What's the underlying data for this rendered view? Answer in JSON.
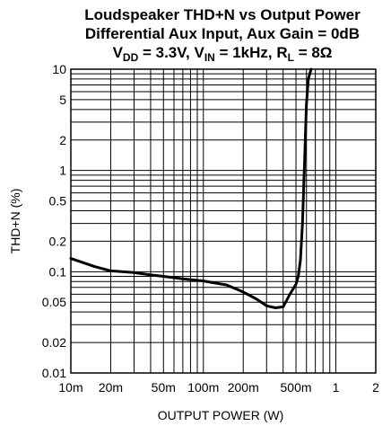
{
  "chart_data": {
    "type": "line",
    "title_lines": [
      "Loudspeaker THD+N vs Output Power",
      "Differential Aux Input, Aux Gain = 0dB"
    ],
    "subtitle": {
      "vdd_prefix": "V",
      "vdd_sub": "DD",
      "vdd_value": " = 3.3V, ",
      "vin_prefix": "V",
      "vin_sub": "IN",
      "vin_value": " = 1kHz, ",
      "rl_prefix": "R",
      "rl_sub": "L",
      "rl_value": " = 8Ω"
    },
    "xlabel": "OUTPUT POWER (W)",
    "ylabel": "THD+N (%)",
    "xscale": "log",
    "yscale": "log",
    "xlim": [
      0.01,
      2
    ],
    "ylim": [
      0.01,
      10
    ],
    "grid": true,
    "x_tick_values": [
      0.01,
      0.02,
      0.05,
      0.1,
      0.2,
      0.5,
      1,
      2
    ],
    "x_tick_labels": [
      "10m",
      "20m",
      "50m",
      "100m",
      "200m",
      "500m",
      "1",
      "2"
    ],
    "y_tick_values": [
      0.01,
      0.02,
      0.05,
      0.1,
      0.2,
      0.5,
      1,
      2,
      5,
      10
    ],
    "y_tick_labels": [
      "0.01",
      "0.02",
      "0.05",
      "0.1",
      "0.2",
      "0.5",
      "1",
      "2",
      "5",
      "10"
    ],
    "series": [
      {
        "x": [
          0.01,
          0.015,
          0.02,
          0.03,
          0.04,
          0.05,
          0.07,
          0.1,
          0.15,
          0.2,
          0.25,
          0.3,
          0.35,
          0.4,
          0.45,
          0.5,
          0.52,
          0.54,
          0.56,
          0.58,
          0.6,
          0.62,
          0.65
        ],
        "y": [
          0.135,
          0.113,
          0.102,
          0.098,
          0.093,
          0.09,
          0.085,
          0.081,
          0.074,
          0.063,
          0.054,
          0.046,
          0.044,
          0.045,
          0.06,
          0.075,
          0.09,
          0.13,
          0.3,
          1.2,
          4.5,
          8.0,
          10.0
        ]
      }
    ]
  }
}
